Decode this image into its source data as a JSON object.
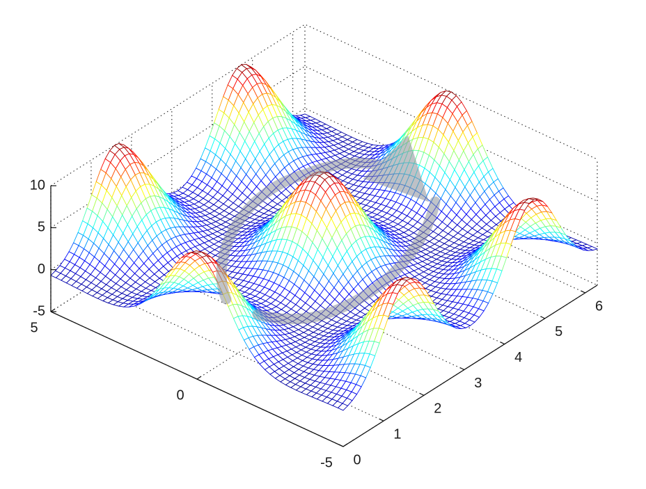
{
  "chart_data": {
    "type": "surface",
    "title": "",
    "xlabel": "",
    "ylabel": "",
    "zlabel": "",
    "xlim": [
      0,
      6.3
    ],
    "ylim": [
      -5,
      5
    ],
    "zlim": [
      -5,
      10
    ],
    "x_ticks": [
      "0",
      "1",
      "2",
      "3",
      "4",
      "5",
      "6"
    ],
    "y_ticks": [
      "-5",
      "0",
      "5"
    ],
    "z_ticks": [
      "-5",
      "0",
      "5",
      "10"
    ],
    "grid": true,
    "box": true,
    "colormap": "jet",
    "colormap_stops": [
      "#00008f",
      "#0000ff",
      "#00a0ff",
      "#00ffff",
      "#80ff80",
      "#ffff00",
      "#ff8000",
      "#ff0000",
      "#800000"
    ],
    "surface_peaks": [
      {
        "x": 3.1,
        "y": 0.0,
        "z": 10
      },
      {
        "x": 0.0,
        "y": 0.0,
        "z": 10
      },
      {
        "x": 6.3,
        "y": 0.0,
        "z": 10
      },
      {
        "x": 1.6,
        "y": 5.0,
        "z": 10
      },
      {
        "x": 1.6,
        "y": -5.0,
        "z": 10
      },
      {
        "x": 4.7,
        "y": 5.0,
        "z": 10
      },
      {
        "x": 4.7,
        "y": -5.0,
        "z": 10
      }
    ],
    "surface_base_z": -1,
    "annotation": "rotation-arrow"
  }
}
